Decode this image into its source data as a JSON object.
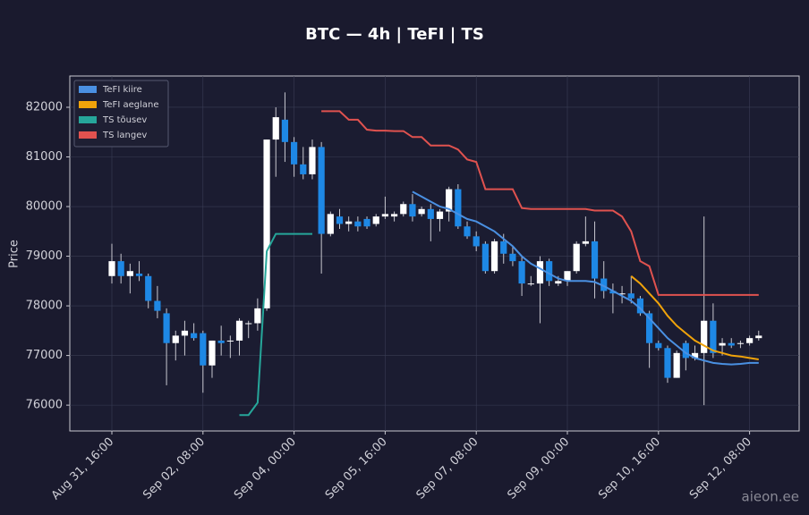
{
  "chart_data": {
    "type": "candlestick",
    "title": "BTC — 4h  |  TeFI  |  TS",
    "y_label": "Price",
    "watermark": "aieon.ee",
    "categories": [
      "Aug 31, 16:00",
      null,
      null,
      null,
      null,
      null,
      null,
      null,
      null,
      null,
      "Sep 02, 08:00",
      null,
      null,
      null,
      null,
      null,
      null,
      null,
      null,
      null,
      "Sep 04, 00:00",
      null,
      null,
      null,
      null,
      null,
      null,
      null,
      null,
      null,
      "Sep 05, 16:00",
      null,
      null,
      null,
      null,
      null,
      null,
      null,
      null,
      null,
      "Sep 07, 08:00",
      null,
      null,
      null,
      null,
      null,
      null,
      null,
      null,
      null,
      "Sep 09, 00:00",
      null,
      null,
      null,
      null,
      null,
      null,
      null,
      null,
      null,
      "Sep 10, 16:00",
      null,
      null,
      null,
      null,
      null,
      null,
      null,
      null,
      null,
      "Sep 12, 08:00",
      null
    ],
    "open": [
      78600,
      78900,
      78600,
      78650,
      78600,
      78100,
      77850,
      77250,
      77400,
      77450,
      77450,
      76800,
      77300,
      77300,
      77300,
      77650,
      77650,
      77950,
      81350,
      81750,
      81300,
      80850,
      80650,
      81200,
      79450,
      79800,
      79650,
      79700,
      79750,
      79650,
      79800,
      79800,
      79850,
      80050,
      79850,
      79950,
      79750,
      79900,
      80350,
      79600,
      79400,
      79250,
      78700,
      79300,
      79050,
      78900,
      78450,
      78450,
      78900,
      78450,
      78500,
      78700,
      79250,
      79300,
      78550,
      78300,
      78250,
      78250,
      78150,
      77850,
      77250,
      77150,
      76550,
      77250,
      76950,
      77050,
      77700,
      77200,
      77250,
      77250,
      77250,
      77350
    ],
    "high": [
      79250,
      79050,
      78850,
      78900,
      78650,
      78400,
      77950,
      77500,
      77700,
      77650,
      77500,
      77300,
      77600,
      77400,
      77750,
      77700,
      78150,
      81350,
      82000,
      82300,
      81400,
      81200,
      81350,
      81300,
      79900,
      79950,
      79800,
      79800,
      79800,
      79850,
      80200,
      79900,
      80100,
      80250,
      80000,
      80050,
      79950,
      80400,
      80450,
      79700,
      79500,
      79300,
      79350,
      79450,
      79200,
      79000,
      78600,
      79000,
      78950,
      78600,
      78700,
      79300,
      79800,
      79700,
      78900,
      78450,
      78400,
      78600,
      78200,
      77900,
      77300,
      77200,
      77100,
      77300,
      77200,
      79800,
      78050,
      77350,
      77350,
      77300,
      77400,
      77500
    ],
    "low": [
      78450,
      78450,
      78250,
      78500,
      77950,
      77750,
      76400,
      76900,
      77000,
      77300,
      76250,
      76550,
      77000,
      76950,
      77000,
      77350,
      77500,
      77900,
      80600,
      80900,
      80600,
      80550,
      80550,
      78650,
      79400,
      79550,
      79500,
      79500,
      79550,
      79600,
      79750,
      79700,
      79800,
      79700,
      79800,
      79300,
      79500,
      79700,
      79550,
      79350,
      79100,
      78650,
      78650,
      78850,
      78800,
      78200,
      78400,
      77650,
      78400,
      78400,
      78400,
      78650,
      79200,
      78150,
      78150,
      77850,
      78050,
      78050,
      77800,
      76750,
      77100,
      76450,
      76550,
      76700,
      76900,
      76000,
      76950,
      77000,
      77150,
      77150,
      77200,
      77300
    ],
    "close": [
      78900,
      78600,
      78700,
      78600,
      78100,
      77900,
      77250,
      77400,
      77500,
      77350,
      76800,
      77300,
      77250,
      77300,
      77700,
      77650,
      77950,
      81350,
      81800,
      81300,
      80850,
      80650,
      81200,
      79450,
      79850,
      79650,
      79700,
      79600,
      79600,
      79800,
      79850,
      79850,
      80050,
      79800,
      79950,
      79750,
      79900,
      80350,
      79600,
      79400,
      79200,
      78700,
      79300,
      79050,
      78900,
      78450,
      78450,
      78900,
      78500,
      78500,
      78700,
      79250,
      79300,
      78550,
      78300,
      78250,
      78250,
      78150,
      77850,
      77250,
      77150,
      76550,
      77050,
      76950,
      77050,
      77700,
      77050,
      77250,
      77200,
      77250,
      77350,
      77400
    ],
    "up_color": "#ffffff",
    "down_color": "#1e88e5",
    "series": [
      {
        "name": "TeFI kiire",
        "color": "#4a90e2",
        "values": [
          null,
          null,
          null,
          null,
          null,
          null,
          null,
          null,
          null,
          null,
          null,
          null,
          null,
          null,
          null,
          null,
          null,
          null,
          null,
          null,
          null,
          null,
          null,
          null,
          null,
          null,
          null,
          null,
          null,
          null,
          null,
          null,
          null,
          80300,
          80200,
          80100,
          80000,
          79950,
          79850,
          79750,
          79700,
          79600,
          79500,
          79350,
          79200,
          79000,
          78850,
          78750,
          78650,
          78550,
          78500,
          78500,
          78500,
          78480,
          78400,
          78300,
          78200,
          78100,
          77950,
          77750,
          77550,
          77350,
          77200,
          77050,
          76950,
          76900,
          76850,
          76830,
          76820,
          76830,
          76850,
          76850
        ]
      },
      {
        "name": "TeFI aeglane",
        "color": "#f0a30a",
        "values": [
          null,
          null,
          null,
          null,
          null,
          null,
          null,
          null,
          null,
          null,
          null,
          null,
          null,
          null,
          null,
          null,
          null,
          null,
          null,
          null,
          null,
          null,
          null,
          null,
          null,
          null,
          null,
          null,
          null,
          null,
          null,
          null,
          null,
          null,
          null,
          null,
          null,
          null,
          null,
          null,
          null,
          null,
          null,
          null,
          null,
          null,
          null,
          null,
          null,
          null,
          null,
          null,
          null,
          null,
          null,
          null,
          null,
          78600,
          78450,
          78250,
          78050,
          77800,
          77600,
          77450,
          77300,
          77200,
          77100,
          77050,
          77000,
          76980,
          76950,
          76920
        ]
      },
      {
        "name": "TS tõusev",
        "color": "#26a69a",
        "values": [
          null,
          null,
          null,
          null,
          null,
          null,
          null,
          null,
          null,
          null,
          null,
          null,
          null,
          null,
          75800,
          75800,
          76050,
          79100,
          79450,
          79450,
          79450,
          79450,
          79450,
          null,
          null,
          null,
          null,
          null,
          null,
          null,
          null,
          null,
          null,
          null,
          null,
          null,
          null,
          null,
          null,
          null,
          null,
          null,
          null,
          null,
          null,
          null,
          null,
          null,
          null,
          null,
          null,
          null,
          null,
          null,
          null,
          null,
          null,
          null,
          null,
          null,
          null,
          null,
          null,
          null,
          null,
          null,
          null,
          null,
          null,
          null,
          null,
          null
        ]
      },
      {
        "name": "TS langev",
        "color": "#e0524f",
        "values": [
          null,
          null,
          null,
          null,
          null,
          null,
          null,
          null,
          null,
          null,
          null,
          null,
          null,
          null,
          null,
          null,
          null,
          null,
          null,
          null,
          null,
          null,
          null,
          81920,
          81920,
          81920,
          81750,
          81750,
          81550,
          81530,
          81530,
          81520,
          81520,
          81400,
          81400,
          81230,
          81230,
          81230,
          81150,
          80950,
          80900,
          80350,
          80350,
          80350,
          80350,
          79970,
          79950,
          79950,
          79950,
          79950,
          79950,
          79950,
          79950,
          79920,
          79920,
          79920,
          79800,
          79500,
          78900,
          78800,
          78220,
          78220,
          78220,
          78220,
          78220,
          78220,
          78220,
          78220,
          78220,
          78220,
          78220,
          78220
        ]
      }
    ],
    "ylim": [
      75480,
      82630
    ],
    "yticks": [
      76000,
      77000,
      78000,
      79000,
      80000,
      81000,
      82000
    ],
    "grid": true,
    "legend": "upper left"
  }
}
